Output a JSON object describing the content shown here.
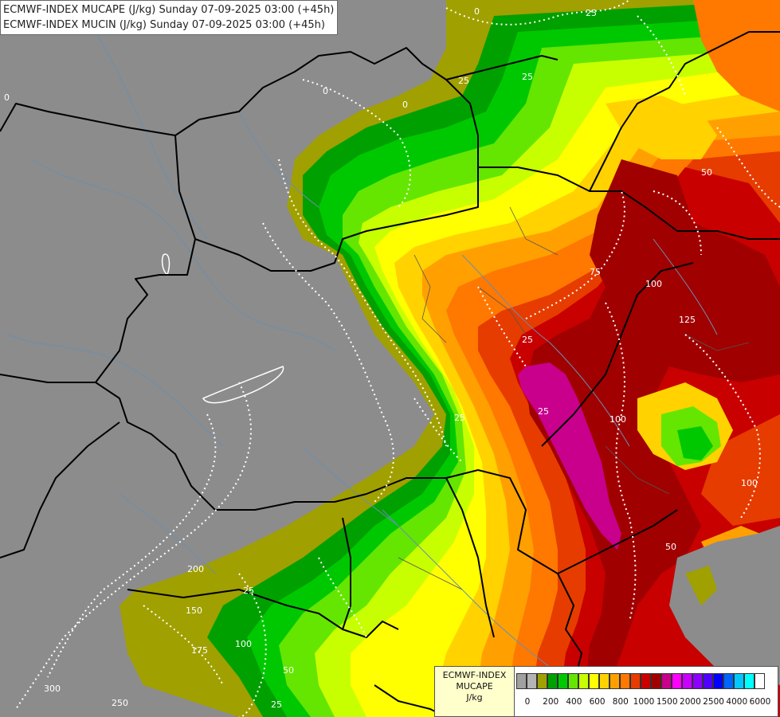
{
  "title": {
    "line1": "ECMWF-INDEX MUCAPE (J/kg) Sunday 07-09-2025 03:00 (+45h)",
    "line2": "ECMWF-INDEX MUCIN (J/kg) Sunday 07-09-2025 03:00 (+45h)"
  },
  "legend": {
    "line1": "ECMWF-INDEX",
    "line2": "MUCAPE",
    "line3": "J/kg",
    "colors": [
      "#a0a0a0",
      "#b4b4b4",
      "#a0a000",
      "#00a000",
      "#00c800",
      "#64e600",
      "#c8ff00",
      "#ffff00",
      "#ffd200",
      "#ffa000",
      "#ff7800",
      "#e63c00",
      "#c80000",
      "#a00000",
      "#c8008c",
      "#ff00ff",
      "#c800ff",
      "#8c00ff",
      "#5000ff",
      "#0000ff",
      "#0064ff",
      "#00c8ff",
      "#00ffff",
      "#ffffff"
    ],
    "tick_labels": [
      "0",
      "200",
      "400",
      "600",
      "800",
      "1000",
      "1500",
      "2000",
      "2500",
      "4000",
      "6000"
    ]
  },
  "cin_labels": [
    "0",
    "25",
    "0",
    "25",
    "0",
    "25",
    "75",
    "100",
    "125",
    "50",
    "25",
    "100",
    "25",
    "100",
    "50",
    "200",
    "150",
    "175",
    "100",
    "25",
    "300",
    "250",
    "0",
    "25",
    "50",
    "25"
  ],
  "colors": {
    "background": "#8c8c8c",
    "border": "#000000",
    "river": "#6a8fb0",
    "cin_contour": "#ffffff"
  }
}
